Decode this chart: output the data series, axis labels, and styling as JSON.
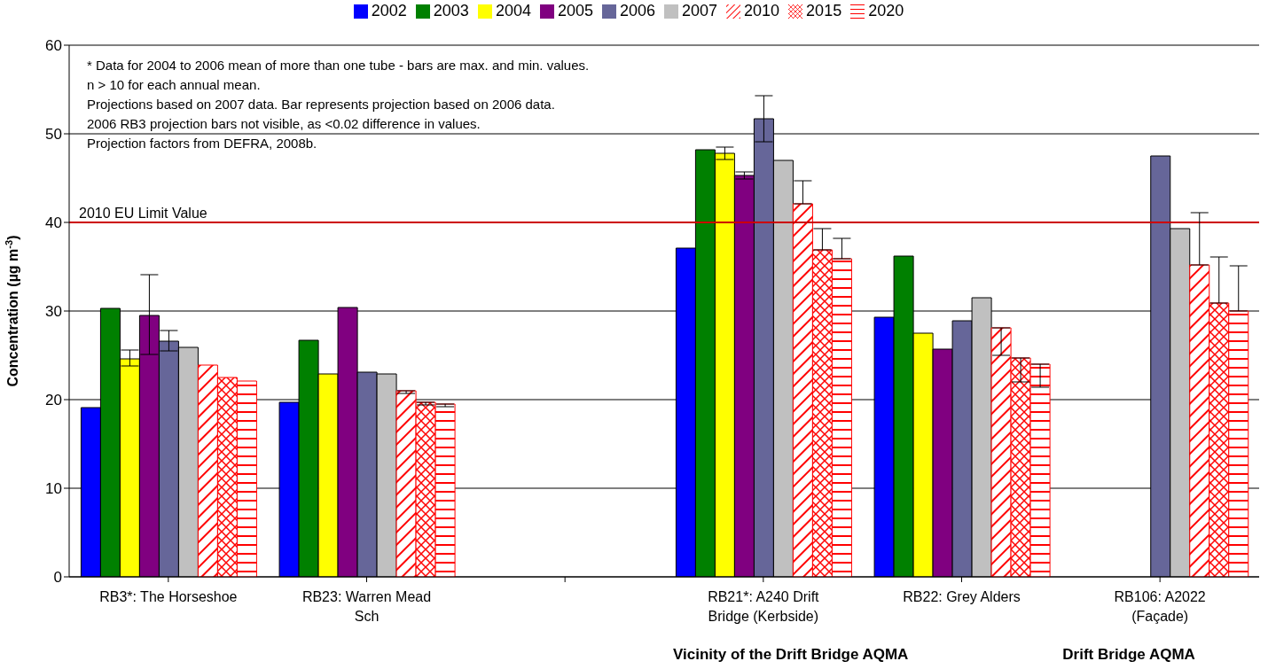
{
  "chart_data": {
    "type": "bar",
    "ylabel": "Concentration (µg m$^{-3}$)",
    "categories": [
      "RB3*: The Horseshoe",
      "RB23: Warren Mead Sch",
      null,
      "RB21*: A240 Drift Bridge (Kerbside)",
      "RB22: Grey Alders",
      "RB106: A2022 (Façade)"
    ],
    "series": [
      {
        "name": "2002",
        "color": "#0000ff",
        "values": [
          19.1,
          19.7,
          null,
          37.1,
          29.3,
          null
        ]
      },
      {
        "name": "2003",
        "color": "#008000",
        "values": [
          30.3,
          26.7,
          null,
          48.2,
          36.2,
          null
        ]
      },
      {
        "name": "2004",
        "color": "#ffff00",
        "values": [
          24.6,
          22.9,
          null,
          47.8,
          27.5,
          null
        ],
        "errors": [
          [
            23.8,
            25.6
          ],
          null,
          null,
          [
            47.1,
            48.5
          ],
          null,
          null
        ]
      },
      {
        "name": "2005",
        "color": "#800080",
        "values": [
          29.5,
          30.4,
          null,
          45.3,
          25.7,
          null
        ],
        "errors": [
          [
            25.1,
            34.1
          ],
          null,
          null,
          [
            44.9,
            45.7
          ],
          null,
          null
        ]
      },
      {
        "name": "2006",
        "color": "#666699",
        "values": [
          26.6,
          23.1,
          null,
          51.7,
          28.9,
          47.5
        ],
        "errors": [
          [
            25.5,
            27.8
          ],
          null,
          null,
          [
            49.1,
            54.3
          ],
          null,
          null
        ]
      },
      {
        "name": "2007",
        "color": "#c0c0c0",
        "values": [
          25.9,
          22.9,
          null,
          47.0,
          31.5,
          39.3
        ]
      },
      {
        "name": "2010",
        "color": "#ff0000",
        "values": [
          23.9,
          21.0,
          null,
          42.1,
          28.1,
          35.2
        ],
        "errors": [
          null,
          [
            20.7,
            21.0
          ],
          null,
          [
            42.1,
            44.7
          ],
          [
            25.0,
            28.1
          ],
          [
            35.2,
            41.1
          ]
        ]
      },
      {
        "name": "2015",
        "color": "#ff0000",
        "values": [
          22.5,
          19.7,
          null,
          36.9,
          24.7,
          30.9
        ],
        "errors": [
          null,
          [
            19.4,
            19.7
          ],
          null,
          [
            36.9,
            39.3
          ],
          [
            22.0,
            24.7
          ],
          [
            30.9,
            36.1
          ]
        ]
      },
      {
        "name": "2020",
        "color": "#ff0000",
        "values": [
          22.1,
          19.5,
          null,
          35.9,
          24.0,
          30.0
        ],
        "errors": [
          null,
          [
            19.2,
            19.5
          ],
          null,
          [
            35.9,
            38.2
          ],
          [
            21.4,
            24.0
          ],
          [
            30.0,
            35.1
          ]
        ]
      }
    ],
    "ylim": [
      0,
      60
    ],
    "yticks": [
      0,
      10,
      20,
      30,
      40,
      50,
      60
    ],
    "grid": "y",
    "legend": "top",
    "ref_lines": [
      {
        "axis": "y",
        "value": 40,
        "label": "2010 EU Limit Value",
        "color": "#cc0000"
      }
    ],
    "annotations": [
      "* Data for 2004 to 2006 mean of more than one tube - bars are max. and min. values.",
      "n > 10 for each annual mean.",
      "Projections based on 2007 data. Bar represents projection based on 2006 data.",
      "2006 RB3 projection bars not visible, as <0.02 difference in values.",
      "Projection factors from DEFRA, 2008b.",
      "Vicinity of the Drift Bridge AQMA",
      "Drift Bridge AQMA"
    ]
  }
}
